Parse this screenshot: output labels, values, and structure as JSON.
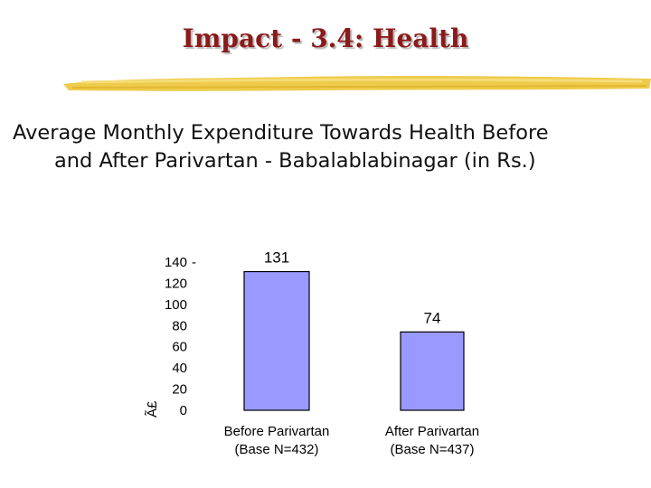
{
  "slide": {
    "title": "Impact - 3.4: Health",
    "subtitle_line1": "Average Monthly Expenditure Towards Health Before",
    "subtitle_line2": "and After Parivartan - Babalablabinagar (in Rs.)"
  },
  "chart_data": {
    "type": "bar",
    "categories": [
      [
        "Before Parivartan",
        "(Base N=432)"
      ],
      [
        "After Parivartan",
        "(Base N=437)"
      ]
    ],
    "values": [
      131,
      74
    ],
    "ylabel": "Ã£",
    "yticks": [
      "0",
      "20",
      "40",
      "60",
      "80",
      "100",
      "120",
      "140"
    ],
    "ylim": [
      0,
      140
    ],
    "bar_color": "#9999ff",
    "grid": false
  },
  "colors": {
    "title": "#8b1a1a",
    "brush": "#e8c23a"
  }
}
